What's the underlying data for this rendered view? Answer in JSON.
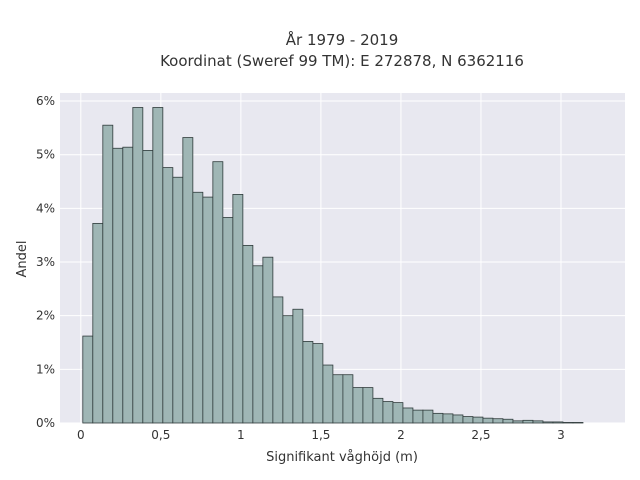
{
  "chart_data": {
    "type": "bar",
    "title_lines": [
      "År 1979 - 2019",
      "Koordinat (Sweref 99 TM): E 272878, N 6362116"
    ],
    "xlabel": "Signifikant våghöjd (m)",
    "ylabel": "Andel",
    "x_ticks": [
      {
        "value": 0,
        "label": "0"
      },
      {
        "value": 0.5,
        "label": "0,5"
      },
      {
        "value": 1,
        "label": "1"
      },
      {
        "value": 1.5,
        "label": "1,5"
      },
      {
        "value": 2,
        "label": "2"
      },
      {
        "value": 2.5,
        "label": "2,5"
      },
      {
        "value": 3,
        "label": "3"
      }
    ],
    "y_ticks": [
      {
        "value": 0,
        "label": "0%"
      },
      {
        "value": 1,
        "label": "1%"
      },
      {
        "value": 2,
        "label": "2%"
      },
      {
        "value": 3,
        "label": "3%"
      },
      {
        "value": 4,
        "label": "4%"
      },
      {
        "value": 5,
        "label": "5%"
      },
      {
        "value": 6,
        "label": "6%"
      }
    ],
    "xlim": [
      -0.13,
      3.4
    ],
    "ylim": [
      0,
      6.15
    ],
    "bin_start": 0.0125,
    "bin_width": 0.0625,
    "values": [
      1.62,
      3.72,
      5.55,
      5.12,
      5.14,
      5.88,
      5.08,
      5.88,
      4.76,
      4.58,
      5.32,
      4.3,
      4.21,
      4.87,
      3.83,
      4.26,
      3.31,
      2.93,
      3.09,
      2.35,
      2.0,
      2.12,
      1.52,
      1.48,
      1.08,
      0.9,
      0.9,
      0.66,
      0.66,
      0.46,
      0.4,
      0.38,
      0.28,
      0.24,
      0.24,
      0.18,
      0.17,
      0.15,
      0.12,
      0.11,
      0.09,
      0.08,
      0.07,
      0.04,
      0.05,
      0.04,
      0.02,
      0.02,
      0.01,
      0.01
    ],
    "grid": true,
    "colors": {
      "plot_bg": "#e8e8f0",
      "grid": "#ffffff",
      "bar_fill": "#9fb6b5",
      "bar_stroke": "#2f3b3b"
    }
  }
}
